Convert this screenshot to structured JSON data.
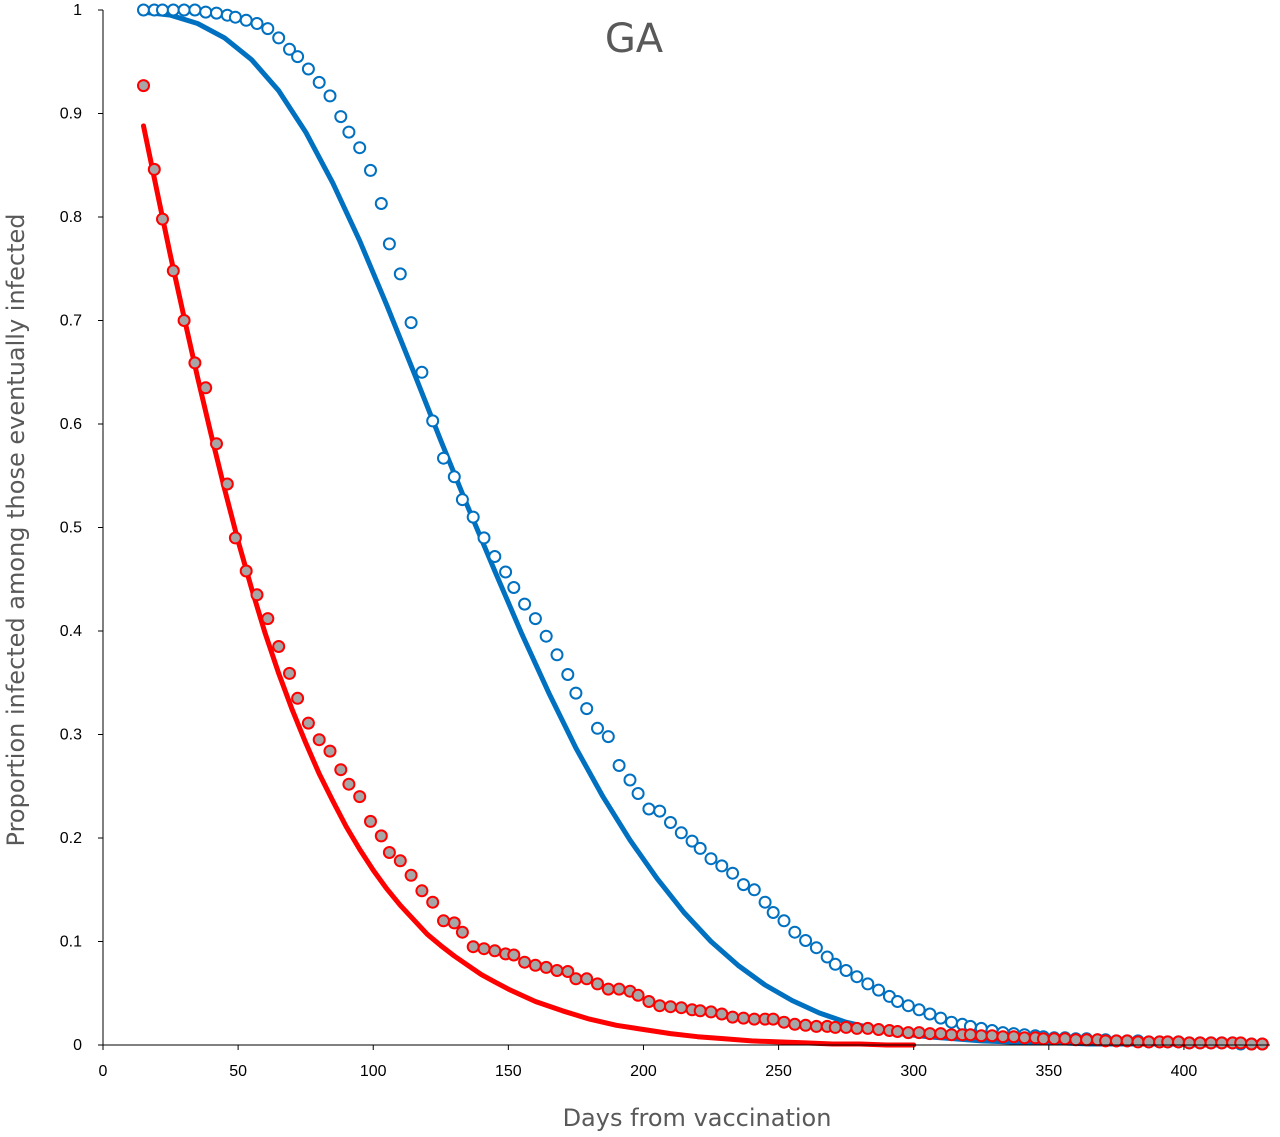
{
  "chart_data": {
    "type": "scatter",
    "title": "GA",
    "xlabel": "Days from vaccination",
    "ylabel": "Proportion infected among those eventually infected",
    "xlim": [
      0,
      430
    ],
    "ylim": [
      0,
      1
    ],
    "xticks": [
      "0",
      "50",
      "100",
      "150",
      "200",
      "250",
      "300",
      "350",
      "400"
    ],
    "yticks": [
      "0",
      "0.1",
      "0.2",
      "0.3",
      "0.4",
      "0.5",
      "0.6",
      "0.7",
      "0.8",
      "0.9",
      "1"
    ],
    "grid": false,
    "colors": {
      "blue": "#0070c0",
      "red": "#ff0000",
      "red_fill": "#a6a6a6",
      "axis": "#000000",
      "title": "#595959"
    },
    "series": [
      {
        "style": "markers-open",
        "color": "#0070c0",
        "x": [
          15,
          19,
          22,
          26,
          30,
          34,
          38,
          42,
          46,
          49,
          53,
          57,
          61,
          65,
          69,
          72,
          76,
          80,
          84,
          88,
          91,
          95,
          99,
          103,
          106,
          110,
          114,
          118,
          122,
          126,
          130,
          133,
          137,
          141,
          145,
          149,
          152,
          156,
          160,
          164,
          168,
          172,
          175,
          179,
          183,
          187,
          191,
          195,
          198,
          202,
          206,
          210,
          214,
          218,
          221,
          225,
          229,
          233,
          237,
          241,
          245,
          248,
          252,
          256,
          260,
          264,
          268,
          271,
          275,
          279,
          283,
          287,
          291,
          294,
          298,
          302,
          306,
          310,
          314,
          318,
          321,
          325,
          329,
          333,
          337,
          341,
          345,
          348,
          352,
          356,
          360,
          364,
          368,
          371,
          375,
          379,
          383,
          387,
          391,
          394,
          398,
          402,
          406,
          410,
          414,
          418,
          421,
          425,
          429
        ],
        "y": [
          1,
          1,
          1,
          1,
          1,
          1,
          0.998,
          0.997,
          0.995,
          0.993,
          0.99,
          0.987,
          0.982,
          0.973,
          0.962,
          0.955,
          0.943,
          0.93,
          0.917,
          0.897,
          0.882,
          0.867,
          0.845,
          0.813,
          0.774,
          0.745,
          0.698,
          0.65,
          0.603,
          0.567,
          0.549,
          0.527,
          0.51,
          0.49,
          0.472,
          0.457,
          0.442,
          0.426,
          0.412,
          0.395,
          0.377,
          0.358,
          0.34,
          0.325,
          0.306,
          0.298,
          0.27,
          0.256,
          0.243,
          0.228,
          0.226,
          0.215,
          0.205,
          0.197,
          0.19,
          0.18,
          0.173,
          0.166,
          0.155,
          0.15,
          0.138,
          0.128,
          0.12,
          0.109,
          0.101,
          0.094,
          0.085,
          0.078,
          0.072,
          0.066,
          0.059,
          0.053,
          0.047,
          0.042,
          0.038,
          0.034,
          0.03,
          0.026,
          0.022,
          0.02,
          0.018,
          0.016,
          0.014,
          0.012,
          0.011,
          0.01,
          0.009,
          0.008,
          0.007,
          0.007,
          0.006,
          0.006,
          0.005,
          0.005,
          0.004,
          0.004,
          0.004,
          0.003,
          0.003,
          0.003,
          0.003,
          0.002,
          0.002,
          0.002,
          0.002,
          0.002,
          0.001,
          0.001,
          0.001
        ]
      },
      {
        "style": "markers-filled",
        "color": "#ff0000",
        "x": [
          15,
          19,
          22,
          26,
          30,
          34,
          38,
          42,
          46,
          49,
          53,
          57,
          61,
          65,
          69,
          72,
          76,
          80,
          84,
          88,
          91,
          95,
          99,
          103,
          106,
          110,
          114,
          118,
          122,
          126,
          130,
          133,
          137,
          141,
          145,
          149,
          152,
          156,
          160,
          164,
          168,
          172,
          175,
          179,
          183,
          187,
          191,
          195,
          198,
          202,
          206,
          210,
          214,
          218,
          221,
          225,
          229,
          233,
          237,
          241,
          245,
          248,
          252,
          256,
          260,
          264,
          268,
          271,
          275,
          279,
          283,
          287,
          291,
          294,
          298,
          302,
          306,
          310,
          314,
          318,
          321,
          325,
          329,
          333,
          337,
          341,
          345,
          348,
          352,
          356,
          360,
          364,
          368,
          371,
          375,
          379,
          383,
          387,
          391,
          394,
          398,
          402,
          406,
          410,
          414,
          418,
          421,
          425,
          429
        ],
        "y": [
          0.927,
          0.846,
          0.798,
          0.748,
          0.7,
          0.659,
          0.635,
          0.581,
          0.542,
          0.49,
          0.458,
          0.435,
          0.412,
          0.385,
          0.359,
          0.335,
          0.311,
          0.295,
          0.284,
          0.266,
          0.252,
          0.24,
          0.216,
          0.202,
          0.186,
          0.178,
          0.164,
          0.149,
          0.138,
          0.12,
          0.118,
          0.109,
          0.095,
          0.093,
          0.091,
          0.088,
          0.087,
          0.08,
          0.077,
          0.075,
          0.072,
          0.071,
          0.064,
          0.064,
          0.059,
          0.054,
          0.054,
          0.052,
          0.048,
          0.042,
          0.038,
          0.037,
          0.036,
          0.034,
          0.033,
          0.032,
          0.03,
          0.027,
          0.026,
          0.025,
          0.025,
          0.025,
          0.022,
          0.02,
          0.019,
          0.018,
          0.018,
          0.017,
          0.017,
          0.016,
          0.016,
          0.015,
          0.014,
          0.013,
          0.012,
          0.012,
          0.011,
          0.011,
          0.01,
          0.01,
          0.01,
          0.009,
          0.009,
          0.008,
          0.008,
          0.007,
          0.007,
          0.006,
          0.006,
          0.006,
          0.005,
          0.005,
          0.005,
          0.004,
          0.004,
          0.004,
          0.003,
          0.003,
          0.003,
          0.003,
          0.003,
          0.002,
          0.002,
          0.002,
          0.002,
          0.002,
          0.002,
          0.001,
          0.001
        ]
      },
      {
        "style": "line",
        "color": "#0070c0",
        "x": [
          15,
          25,
          35,
          45,
          55,
          65,
          75,
          85,
          95,
          105,
          115,
          125,
          135,
          145,
          155,
          165,
          175,
          185,
          195,
          205,
          215,
          225,
          235,
          245,
          255,
          265,
          275,
          285,
          295,
          305,
          315,
          325,
          335,
          345,
          355,
          365,
          375,
          385,
          395,
          405,
          415,
          425,
          430
        ],
        "y": [
          0.998,
          0.995,
          0.987,
          0.973,
          0.952,
          0.922,
          0.882,
          0.833,
          0.777,
          0.715,
          0.65,
          0.584,
          0.52,
          0.458,
          0.397,
          0.34,
          0.287,
          0.24,
          0.198,
          0.161,
          0.128,
          0.1,
          0.077,
          0.058,
          0.043,
          0.031,
          0.022,
          0.016,
          0.011,
          0.008,
          0.006,
          0.004,
          0.003,
          0.002,
          0.002,
          0.001,
          0.001,
          0.001,
          0.001,
          0,
          0,
          0,
          0
        ]
      },
      {
        "style": "line",
        "color": "#ff0000",
        "x": [
          15,
          20,
          25,
          30,
          35,
          40,
          45,
          50,
          55,
          60,
          65,
          70,
          75,
          80,
          85,
          90,
          95,
          100,
          105,
          110,
          115,
          120,
          125,
          130,
          135,
          140,
          145,
          150,
          160,
          170,
          180,
          190,
          200,
          210,
          220,
          230,
          240,
          250,
          260,
          270,
          280,
          290,
          300
        ],
        "y": [
          0.888,
          0.825,
          0.762,
          0.703,
          0.645,
          0.59,
          0.537,
          0.487,
          0.441,
          0.398,
          0.359,
          0.324,
          0.292,
          0.262,
          0.236,
          0.211,
          0.189,
          0.169,
          0.151,
          0.135,
          0.121,
          0.107,
          0.096,
          0.086,
          0.077,
          0.068,
          0.061,
          0.054,
          0.042,
          0.033,
          0.025,
          0.019,
          0.015,
          0.011,
          0.008,
          0.006,
          0.004,
          0.003,
          0.002,
          0.001,
          0.001,
          0,
          0
        ]
      }
    ]
  }
}
